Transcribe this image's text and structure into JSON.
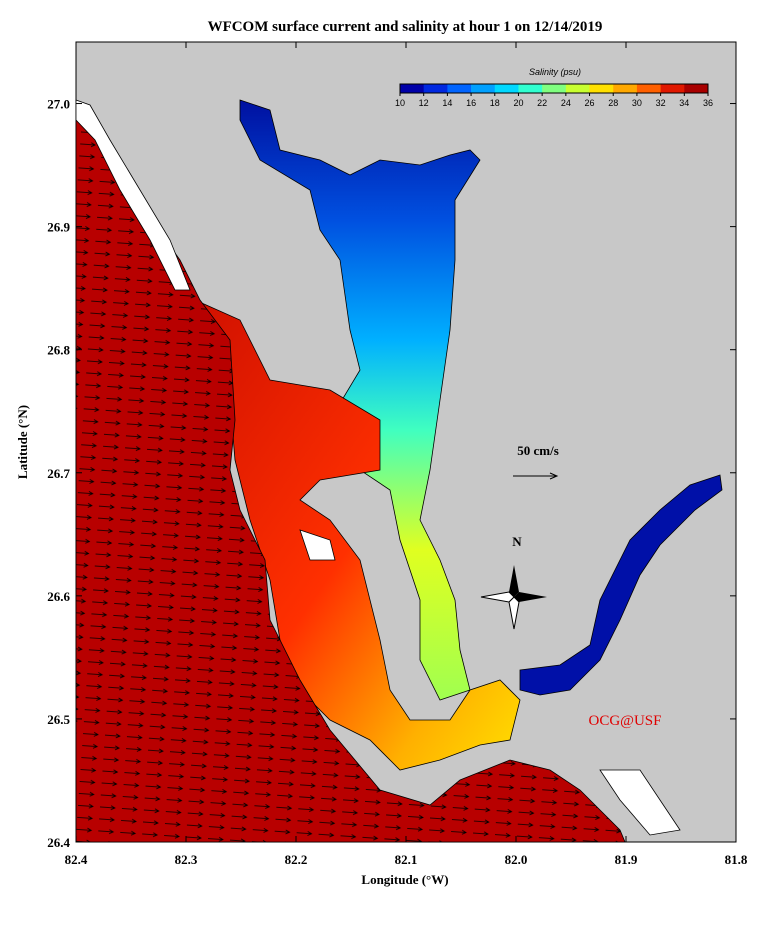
{
  "chart_data": {
    "type": "map",
    "title": "WFCOM surface current and salinity at hour 1 on 12/14/2019",
    "x_label": "Longitude (°W)",
    "y_label": "Latitude (°N)",
    "xlim": [
      82.4,
      81.8
    ],
    "ylim": [
      26.4,
      27.05
    ],
    "xticks": [
      82.4,
      82.3,
      82.2,
      82.1,
      {
        "value": 82,
        "label": "82.0"
      },
      81.9,
      81.8
    ],
    "yticks": [
      26.4,
      26.5,
      26.6,
      26.7,
      26.8,
      26.9,
      {
        "value": 27,
        "label": "27.0"
      }
    ],
    "colorbar": {
      "label": "Salinity (psu)",
      "ticks": [
        10,
        12,
        14,
        16,
        18,
        20,
        22,
        24,
        26,
        28,
        30,
        32,
        34,
        36
      ],
      "colors": [
        "#0000a8",
        "#0028e0",
        "#0064ff",
        "#00a0ff",
        "#00d8ff",
        "#30ffd0",
        "#80ff80",
        "#c8ff30",
        "#ffe000",
        "#ffa800",
        "#ff6000",
        "#e01800",
        "#a80000"
      ]
    },
    "annotations": {
      "scale": "50 cm/s",
      "north": "N",
      "credit": "OCG@USF"
    }
  }
}
